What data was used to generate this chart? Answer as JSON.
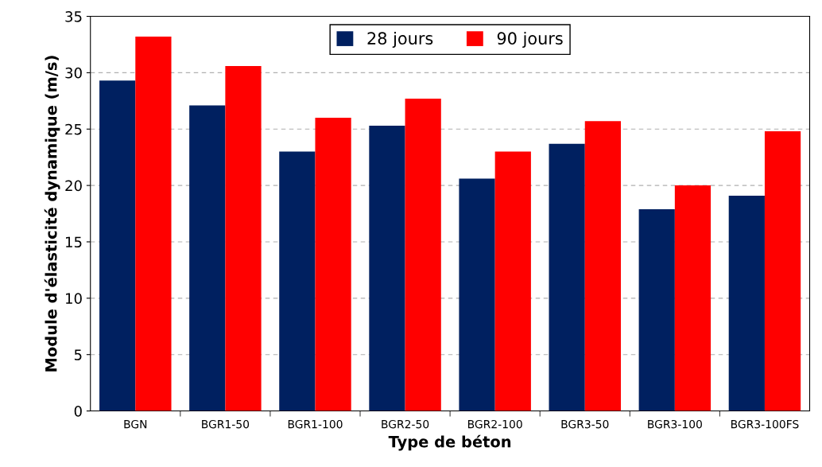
{
  "chart_data": {
    "type": "bar",
    "xlabel": "Type de béton",
    "ylabel": "Module d'élasticité dynamique (m/s)",
    "categories": [
      "BGN",
      "BGR1-50",
      "BGR1-100",
      "BGR2-50",
      "BGR2-100",
      "BGR3-50",
      "BGR3-100",
      "BGR3-100FS"
    ],
    "series": [
      {
        "name": "28 jours",
        "color": "#002060",
        "values": [
          29.3,
          27.1,
          23.0,
          25.3,
          20.6,
          23.7,
          17.9,
          19.1
        ]
      },
      {
        "name": "90 jours",
        "color": "#ff0000",
        "values": [
          33.2,
          30.6,
          26.0,
          27.7,
          23.0,
          25.7,
          20.0,
          24.8
        ]
      }
    ],
    "ylim": [
      0,
      35
    ],
    "yticks": [
      0,
      5,
      10,
      15,
      20,
      25,
      30,
      35
    ],
    "grid": "y",
    "legend": "top"
  }
}
